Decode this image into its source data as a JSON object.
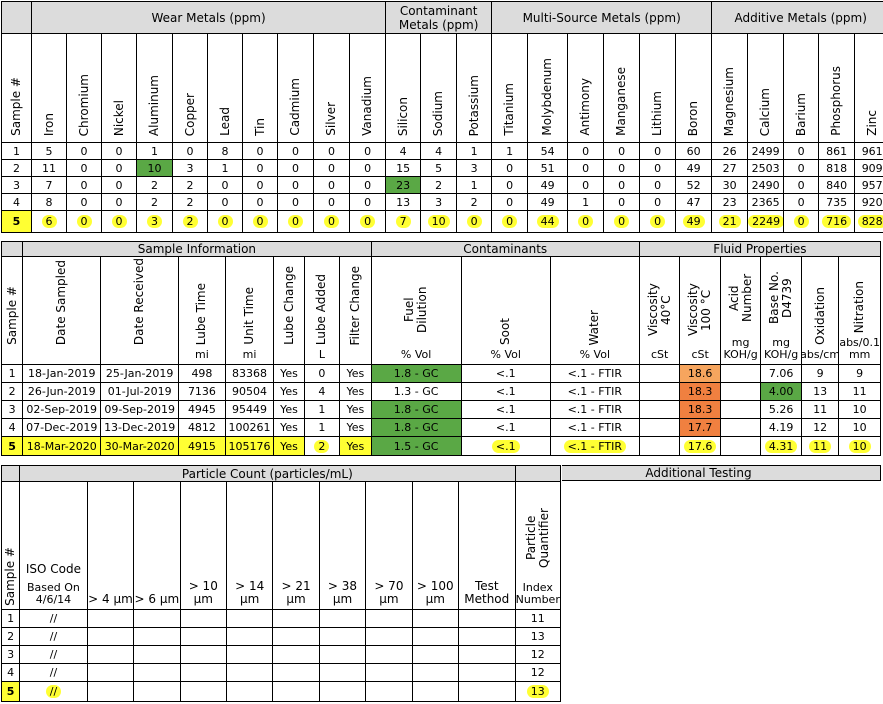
{
  "metals": {
    "groups": [
      "Wear Metals (ppm)",
      "Contaminant Metals (ppm)",
      "Multi-Source Metals (ppm)",
      "Additive Metals (ppm)"
    ],
    "columns": [
      "Sample #",
      "Iron",
      "Chromium",
      "Nickel",
      "Aluminum",
      "Copper",
      "Lead",
      "Tin",
      "Cadmium",
      "Silver",
      "Vanadium",
      "Silicon",
      "Sodium",
      "Potassium",
      "Titanium",
      "Molybdenum",
      "Antimony",
      "Manganese",
      "Lithium",
      "Boron",
      "Magnesium",
      "Calcium",
      "Barium",
      "Phosphorus",
      "Zinc"
    ],
    "rows": [
      [
        "1",
        "5",
        "0",
        "0",
        "1",
        "0",
        "8",
        "0",
        "0",
        "0",
        "0",
        "4",
        "4",
        "1",
        "1",
        "54",
        "0",
        "0",
        "0",
        "60",
        "26",
        "2499",
        "0",
        "861",
        "961"
      ],
      [
        "2",
        "11",
        "0",
        "0",
        "10",
        "3",
        "1",
        "0",
        "0",
        "0",
        "0",
        "15",
        "5",
        "3",
        "0",
        "51",
        "0",
        "0",
        "0",
        "49",
        "27",
        "2503",
        "0",
        "818",
        "909"
      ],
      [
        "3",
        "7",
        "0",
        "0",
        "2",
        "2",
        "0",
        "0",
        "0",
        "0",
        "0",
        "23",
        "2",
        "1",
        "0",
        "49",
        "0",
        "0",
        "0",
        "52",
        "30",
        "2490",
        "0",
        "840",
        "957"
      ],
      [
        "4",
        "8",
        "0",
        "0",
        "2",
        "2",
        "0",
        "0",
        "0",
        "0",
        "0",
        "13",
        "3",
        "2",
        "0",
        "49",
        "1",
        "0",
        "0",
        "47",
        "23",
        "2365",
        "0",
        "735",
        "920"
      ],
      [
        "5",
        "6",
        "0",
        "0",
        "3",
        "2",
        "0",
        "0",
        "0",
        "0",
        "0",
        "7",
        "10",
        "0",
        "0",
        "44",
        "0",
        "0",
        "0",
        "49",
        "21",
        "2249",
        "0",
        "716",
        "828"
      ]
    ]
  },
  "fluid": {
    "groups": [
      "Sample Information",
      "Contaminants",
      "Fluid Properties"
    ],
    "columns": [
      "Sample #",
      "Date Sampled",
      "Date  Received",
      "Lube Time",
      "Unit Time",
      "Lube Change",
      "Lube Added",
      "Filter Change",
      "Fuel Dilution",
      "Soot",
      "Water",
      "Viscosity 40°C",
      "Viscosity 100 °C",
      "Acid Number",
      "Base No. D4739",
      "Oxidation",
      "Nitration"
    ],
    "units": [
      "",
      "",
      "",
      "mi",
      "mi",
      "",
      "L",
      "",
      "% Vol",
      "% Vol",
      "% Vol",
      "cSt",
      "cSt",
      "mg KOH/g",
      "mg KOH/g",
      "abs/cm",
      "abs/0.1 mm"
    ],
    "rows": [
      [
        "1",
        "18-Jan-2019",
        "25-Jan-2019",
        "498",
        "83368",
        "Yes",
        "0",
        "Yes",
        "1.8 - GC",
        "<.1",
        "<.1 - FTIR",
        "",
        "18.6",
        "",
        "7.06",
        "9",
        "9"
      ],
      [
        "2",
        "26-Jun-2019",
        "01-Jul-2019",
        "7136",
        "90504",
        "Yes",
        "4",
        "Yes",
        "1.3 - GC",
        "<.1",
        "<.1 - FTIR",
        "",
        "18.3",
        "",
        "4.00",
        "13",
        "11"
      ],
      [
        "3",
        "02-Sep-2019",
        "09-Sep-2019",
        "4945",
        "95449",
        "Yes",
        "1",
        "Yes",
        "1.8 - GC",
        "<.1",
        "<.1 - FTIR",
        "",
        "18.3",
        "",
        "5.26",
        "11",
        "10"
      ],
      [
        "4",
        "07-Dec-2019",
        "13-Dec-2019",
        "4812",
        "100261",
        "Yes",
        "1",
        "Yes",
        "1.8 - GC",
        "<.1",
        "<.1 - FTIR",
        "",
        "17.7",
        "",
        "4.19",
        "12",
        "10"
      ],
      [
        "5",
        "18-Mar-2020",
        "30-Mar-2020",
        "4915",
        "105176",
        "Yes",
        "2",
        "Yes",
        "1.5 - GC",
        "<.1",
        "<.1 - FTIR",
        "",
        "17.6",
        "",
        "4.31",
        "11",
        "10"
      ]
    ]
  },
  "particle": {
    "groups": [
      "Particle Count (particles/mL)",
      "Additional Testing"
    ],
    "columns": [
      "Sample #",
      "ISO Code",
      "> 4 µm",
      "> 6 µm",
      "> 10 µm",
      "> 14 µm",
      "> 21 µm",
      "> 38 µm",
      "> 70 µm",
      "> 100 µm",
      "Test Method",
      "Particle Quantifier"
    ],
    "iso_sub": "Based On 4/6/14",
    "pq_sub": "Index Number",
    "rows": [
      [
        "1",
        "//",
        "",
        "",
        "",
        "",
        "",
        "",
        "",
        "",
        "",
        "11"
      ],
      [
        "2",
        "//",
        "",
        "",
        "",
        "",
        "",
        "",
        "",
        "",
        "",
        "13"
      ],
      [
        "3",
        "//",
        "",
        "",
        "",
        "",
        "",
        "",
        "",
        "",
        "",
        "12"
      ],
      [
        "4",
        "//",
        "",
        "",
        "",
        "",
        "",
        "",
        "",
        "",
        "",
        "12"
      ],
      [
        "5",
        "//",
        "",
        "",
        "",
        "",
        "",
        "",
        "",
        "",
        "",
        "13"
      ]
    ]
  },
  "colors": {
    "highlight": "#ffff33",
    "green": "#5aa845",
    "orange": "#f08040",
    "light_orange": "#f6a55e",
    "header_gray": "#dcdcdc"
  }
}
